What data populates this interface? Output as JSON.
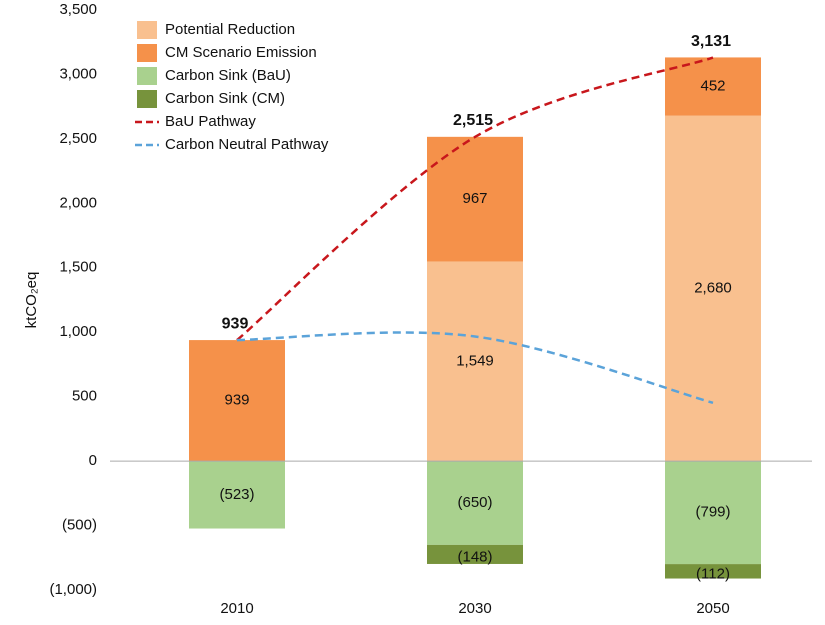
{
  "chart_data": {
    "type": "bar",
    "y_label": "ktCO₂eq",
    "categories": [
      "2010",
      "2030",
      "2050"
    ],
    "ylim": [
      -1000,
      3500
    ],
    "yticks": [
      {
        "value": -1000,
        "label": "(1,000)"
      },
      {
        "value": -500,
        "label": "(500)"
      },
      0,
      500,
      {
        "value": 1000,
        "label": "1,000"
      },
      {
        "value": 1500,
        "label": "1,500"
      },
      {
        "value": 2000,
        "label": "2,000"
      },
      {
        "value": 2500,
        "label": "2,500"
      },
      {
        "value": 3000,
        "label": "3,000"
      },
      {
        "value": 3500,
        "label": "3,500"
      }
    ],
    "series": [
      {
        "name": "Potential Reduction",
        "type": "bar",
        "color": "#f9c08f",
        "values": [
          null,
          1549,
          2680
        ],
        "value_labels": [
          null,
          "1,549",
          "2,680"
        ]
      },
      {
        "name": "CM Scenario Emission",
        "type": "bar",
        "color": "#f5914a",
        "values": [
          939,
          967,
          452
        ]
      },
      {
        "name": "Carbon Sink (BaU)",
        "type": "bar",
        "color": "#a9d18e",
        "values": [
          -523,
          -650,
          -799
        ],
        "value_labels": [
          "(523)",
          "(650)",
          "(799)"
        ]
      },
      {
        "name": "Carbon Sink (CM)",
        "type": "bar",
        "color": "#77933c",
        "values": [
          null,
          -148,
          -112
        ],
        "value_labels": [
          null,
          "(148)",
          "(112)"
        ]
      },
      {
        "name": "BaU Pathway",
        "type": "line",
        "color": "#c8171c",
        "values": [
          939,
          2515,
          3131
        ],
        "value_labels": [
          "939",
          "2,515",
          "3,131"
        ]
      },
      {
        "name": "Carbon Neutral Pathway",
        "type": "line",
        "color": "#5ba3d9",
        "values": [
          939,
          967,
          452
        ]
      }
    ]
  }
}
